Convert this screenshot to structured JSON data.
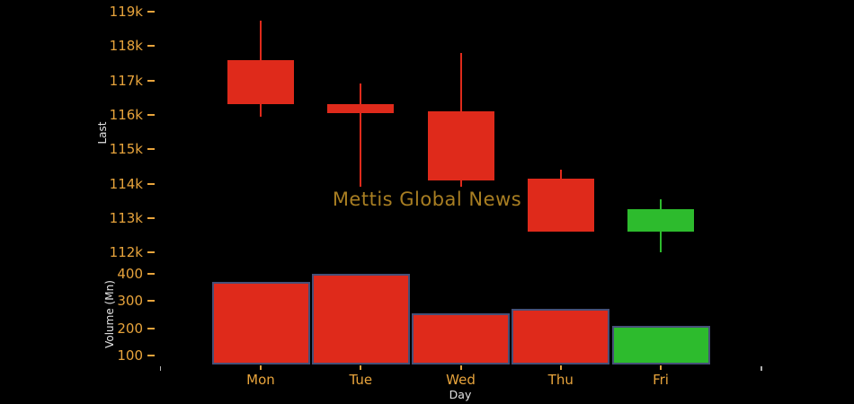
{
  "chart_data": {
    "type": "candlestick+volume",
    "title": "",
    "watermark": "Mettis Global News",
    "xlabel": "Day",
    "categories": [
      "Mon",
      "Tue",
      "Wed",
      "Thu",
      "Fri"
    ],
    "price_panel": {
      "ylabel": "Last",
      "ylim": [
        111800,
        119200
      ],
      "grid": false,
      "yticks": [
        {
          "label": "119k",
          "value": 119000
        },
        {
          "label": "118k",
          "value": 118000
        },
        {
          "label": "117k",
          "value": 117000
        },
        {
          "label": "116k",
          "value": 116000
        },
        {
          "label": "115k",
          "value": 115000
        },
        {
          "label": "114k",
          "value": 114000
        },
        {
          "label": "113k",
          "value": 113000
        },
        {
          "label": "112k",
          "value": 112000
        }
      ],
      "ohlc": [
        {
          "day": "Mon",
          "open": 117600,
          "high": 118750,
          "low": 115950,
          "close": 116300,
          "direction": "down"
        },
        {
          "day": "Tue",
          "open": 116300,
          "high": 116900,
          "low": 113900,
          "close": 116050,
          "direction": "down"
        },
        {
          "day": "Wed",
          "open": 116100,
          "high": 117800,
          "low": 113900,
          "close": 114100,
          "direction": "down"
        },
        {
          "day": "Thu",
          "open": 114150,
          "high": 114400,
          "low": 112600,
          "close": 112600,
          "direction": "down"
        },
        {
          "day": "Fri",
          "open": 112600,
          "high": 113550,
          "low": 112000,
          "close": 113250,
          "direction": "up"
        }
      ]
    },
    "volume_panel": {
      "ylabel": "Volume (Mn)",
      "ylim": [
        65,
        410
      ],
      "grid": false,
      "yticks": [
        {
          "label": "400",
          "value": 400
        },
        {
          "label": "300",
          "value": 300
        },
        {
          "label": "200",
          "value": 200
        },
        {
          "label": "100",
          "value": 100
        }
      ],
      "values": [
        370,
        400,
        255,
        270,
        210
      ],
      "directions": [
        "down",
        "down",
        "down",
        "down",
        "up"
      ]
    },
    "colors": {
      "background": "#000000",
      "up": "#2dbb2d",
      "down": "#df2a1b",
      "tick_label": "#e8a43c",
      "axis_title": "#e2e2e2",
      "watermark": "#a87e22",
      "volume_bar_border": "#465078",
      "edge_tick": "#b0b0b0"
    }
  }
}
